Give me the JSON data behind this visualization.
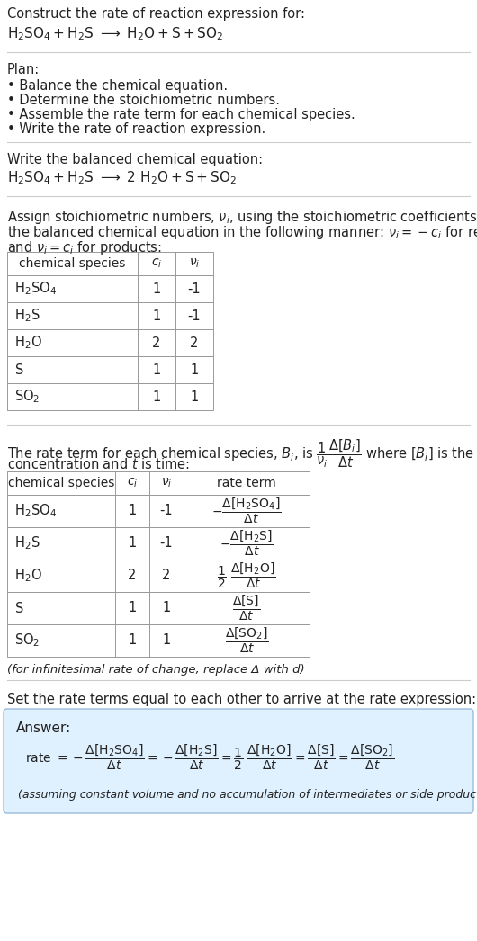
{
  "title_line1": "Construct the rate of reaction expression for:",
  "bg_color": "#ffffff",
  "text_color": "#222222",
  "table_border_color": "#999999",
  "separator_color": "#cccccc",
  "answer_box_color": "#dff0ff",
  "answer_border_color": "#99bbdd",
  "species_table1": [
    [
      "H_2SO_4",
      "1",
      "-1"
    ],
    [
      "H_2S",
      "1",
      "-1"
    ],
    [
      "H_2O",
      "2",
      "2"
    ],
    [
      "S",
      "1",
      "1"
    ],
    [
      "SO_2",
      "1",
      "1"
    ]
  ],
  "species_table2": [
    [
      "H_2SO_4",
      "1",
      "-1",
      "neg_h2so4"
    ],
    [
      "H_2S",
      "1",
      "-1",
      "neg_h2s"
    ],
    [
      "H_2O",
      "2",
      "2",
      "half_h2o"
    ],
    [
      "S",
      "1",
      "1",
      "s"
    ],
    [
      "SO_2",
      "1",
      "1",
      "so2"
    ]
  ]
}
